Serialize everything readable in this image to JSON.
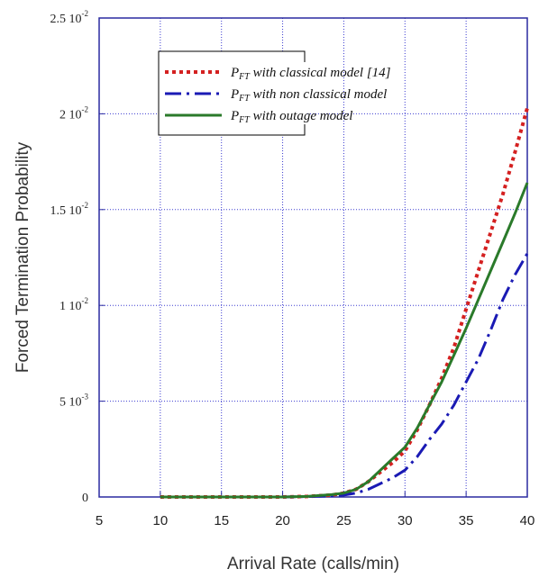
{
  "chart_data": {
    "type": "line",
    "xlabel": "Arrival Rate (calls/min)",
    "ylabel": "Forced Termination Probability",
    "xlim": [
      5,
      40
    ],
    "ylim": [
      0,
      0.025
    ],
    "grid": true,
    "legend_position": "top",
    "x_ticks": [
      {
        "value": 5,
        "label": "5"
      },
      {
        "value": 10,
        "label": "10"
      },
      {
        "value": 15,
        "label": "15"
      },
      {
        "value": 20,
        "label": "20"
      },
      {
        "value": 25,
        "label": "25"
      },
      {
        "value": 30,
        "label": "30"
      },
      {
        "value": 35,
        "label": "35"
      },
      {
        "value": 40,
        "label": "40"
      }
    ],
    "y_ticks": [
      {
        "value": 0,
        "mant": "0",
        "exp": ""
      },
      {
        "value": 0.005,
        "mant": "5 10",
        "exp": "-3"
      },
      {
        "value": 0.01,
        "mant": "1 10",
        "exp": "-2"
      },
      {
        "value": 0.015,
        "mant": "1.5 10",
        "exp": "-2"
      },
      {
        "value": 0.02,
        "mant": "2 10",
        "exp": "-2"
      },
      {
        "value": 0.025,
        "mant": "2.5 10",
        "exp": "-2"
      }
    ],
    "series": [
      {
        "legend_main": "P",
        "legend_sub": "FT",
        "legend_rest": " with classical model [14]",
        "color": "#d42020",
        "dash": "4,4",
        "width": 4,
        "x": [
          10,
          20,
          22,
          24,
          25,
          26,
          27,
          28,
          29,
          30,
          31,
          32,
          33,
          34,
          35,
          36,
          37,
          38,
          39,
          40
        ],
        "y": [
          0,
          0,
          3e-05,
          0.0001,
          0.0002,
          0.0004,
          0.0008,
          0.0013,
          0.0018,
          0.0024,
          0.0035,
          0.0048,
          0.0062,
          0.0078,
          0.0098,
          0.0118,
          0.0138,
          0.0158,
          0.018,
          0.0203
        ]
      },
      {
        "legend_main": "P",
        "legend_sub": "FT",
        "legend_rest": " with non classical model",
        "color": "#1a1ab4",
        "dash": "18,6,3,6",
        "width": 3,
        "x": [
          10,
          20,
          22,
          24,
          25,
          26,
          27,
          28,
          29,
          30,
          31,
          32,
          33,
          34,
          35,
          36,
          37,
          38,
          39,
          40
        ],
        "y": [
          0,
          0,
          2e-05,
          5e-05,
          0.0001,
          0.0002,
          0.0004,
          0.0007,
          0.001,
          0.0014,
          0.0021,
          0.003,
          0.0038,
          0.0048,
          0.006,
          0.0072,
          0.0087,
          0.0103,
          0.0116,
          0.0127
        ]
      },
      {
        "legend_main": "P",
        "legend_sub": "FT",
        "legend_rest": " with outage model",
        "color": "#2a7a2a",
        "dash": "",
        "width": 3,
        "x": [
          10,
          20,
          22,
          24,
          25,
          26,
          27,
          28,
          29,
          30,
          31,
          32,
          33,
          34,
          35,
          36,
          37,
          38,
          39,
          40
        ],
        "y": [
          0,
          0,
          3e-05,
          0.00012,
          0.0002,
          0.0004,
          0.0008,
          0.0014,
          0.002,
          0.0026,
          0.0036,
          0.0048,
          0.006,
          0.0074,
          0.0088,
          0.0103,
          0.0118,
          0.0133,
          0.0148,
          0.0164
        ]
      }
    ]
  }
}
